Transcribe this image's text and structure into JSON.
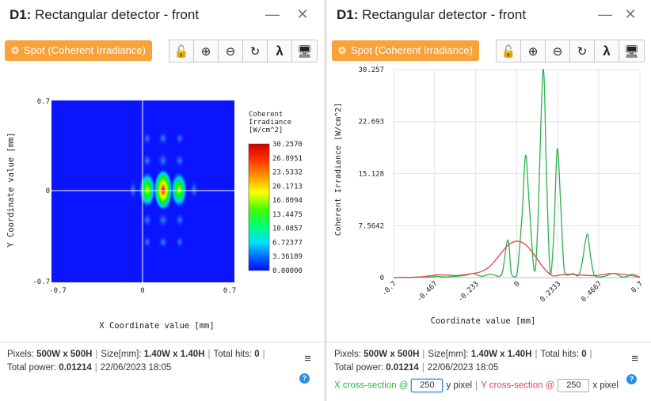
{
  "left": {
    "title_bold": "D1:",
    "title_rest": " Rectangular detector - front",
    "spot_label": "Spot (Coherent Irradiance)",
    "toolbar": [
      "unlock-icon",
      "zoom-in-icon",
      "zoom-out-icon",
      "refresh-icon",
      "lambda-icon",
      "monitor-icon"
    ],
    "plot": {
      "x_label": "X Coordinate value [mm]",
      "y_label": "Y Coordinate value [mm]",
      "x_ticks": [
        "-0.7",
        "0",
        "0.7"
      ],
      "y_ticks": [
        "0.7",
        "0",
        "-0.7"
      ],
      "colorbar_title": [
        "Coherent",
        "Irradiance",
        "[W/cm^2]"
      ],
      "colorbar_ticks": [
        "30.2570",
        "26.8951",
        "23.5332",
        "20.1713",
        "16.8094",
        "13.4475",
        "10.0857",
        "6.72377",
        "3.36189",
        "0.00000"
      ]
    },
    "footer": {
      "pixels_label": "Pixels:",
      "pixels_value": "500W x 500H",
      "size_label": "Size[mm]:",
      "size_value": "1.40W x 1.40H",
      "hits_label": "Total hits:",
      "hits_value": "0",
      "power_label": "Total power:",
      "power_value": "0.01214",
      "timestamp": "22/06/2023 18:05"
    }
  },
  "right": {
    "title_bold": "D1:",
    "title_rest": " Rectangular detector - front",
    "spot_label": "Spot (Coherent Irradiance)",
    "toolbar": [
      "unlock-icon",
      "zoom-in-icon",
      "zoom-out-icon",
      "refresh-icon",
      "lambda-icon",
      "monitor-icon"
    ],
    "footer": {
      "pixels_label": "Pixels:",
      "pixels_value": "500W x 500H",
      "size_label": "Size[mm]:",
      "size_value": "1.40W x 1.40H",
      "hits_label": "Total hits:",
      "hits_value": "0",
      "power_label": "Total power:",
      "power_value": "0.01214",
      "timestamp": "22/06/2023 18:05",
      "x_section_label": "X cross-section @",
      "x_section_value": "250",
      "x_section_unit": "y pixel",
      "y_section_label": "Y cross-section @",
      "y_section_value": "250",
      "y_section_unit": "x pixel"
    }
  },
  "colors": {
    "accent": "#f7a23b",
    "x_section": "#2bb24c",
    "y_section": "#e0454a",
    "map_background": "#0a14ff"
  },
  "chart_data": {
    "type": "line",
    "xlabel": "Coordinate value [mm]",
    "ylabel": "Coherent Irradiance [W/cm^2]",
    "xlim": [
      -0.7,
      0.7
    ],
    "ylim": [
      0,
      30.257
    ],
    "x_ticks": [
      "-0.7",
      "-0.467",
      "-0.233",
      "0",
      "0.2333",
      "0.4667",
      "0.7"
    ],
    "y_ticks": [
      "0",
      "7.5642",
      "15.128",
      "22.693",
      "30.257"
    ],
    "grid": true,
    "series": [
      {
        "color": "#2bb24c",
        "x": [
          -0.7,
          -0.5,
          -0.46,
          -0.4,
          -0.3,
          -0.25,
          -0.2,
          -0.15,
          -0.1,
          -0.08,
          -0.05,
          -0.03,
          0.0,
          0.03,
          0.05,
          0.07,
          0.1,
          0.12,
          0.15,
          0.17,
          0.19,
          0.21,
          0.23,
          0.25,
          0.27,
          0.3,
          0.32,
          0.35,
          0.37,
          0.4,
          0.42,
          0.44,
          0.47,
          0.5,
          0.55,
          0.6,
          0.63,
          0.66,
          0.7
        ],
        "y": [
          0.0,
          0.1,
          0.2,
          0.1,
          0.3,
          0.6,
          0.2,
          0.5,
          0.2,
          1.0,
          5.5,
          0.5,
          0.3,
          9.0,
          17.8,
          11.0,
          1.0,
          8.0,
          30.257,
          14.0,
          0.5,
          6.0,
          18.7,
          10.5,
          1.0,
          0.4,
          0.6,
          0.3,
          2.0,
          6.3,
          3.0,
          0.4,
          0.1,
          0.2,
          0.6,
          0.1,
          0.2,
          0.5,
          0.0
        ]
      },
      {
        "color": "#e0454a",
        "x": [
          -0.7,
          -0.55,
          -0.45,
          -0.35,
          -0.3,
          -0.25,
          -0.2,
          -0.15,
          -0.1,
          -0.05,
          0.0,
          0.05,
          0.1,
          0.15,
          0.2,
          0.25,
          0.3,
          0.35,
          0.45,
          0.55,
          0.7
        ],
        "y": [
          0.0,
          0.1,
          0.4,
          0.3,
          0.4,
          0.6,
          0.9,
          1.7,
          3.2,
          4.7,
          5.3,
          4.8,
          3.3,
          1.5,
          0.3,
          0.4,
          0.5,
          0.4,
          0.3,
          0.6,
          0.1
        ]
      }
    ]
  }
}
